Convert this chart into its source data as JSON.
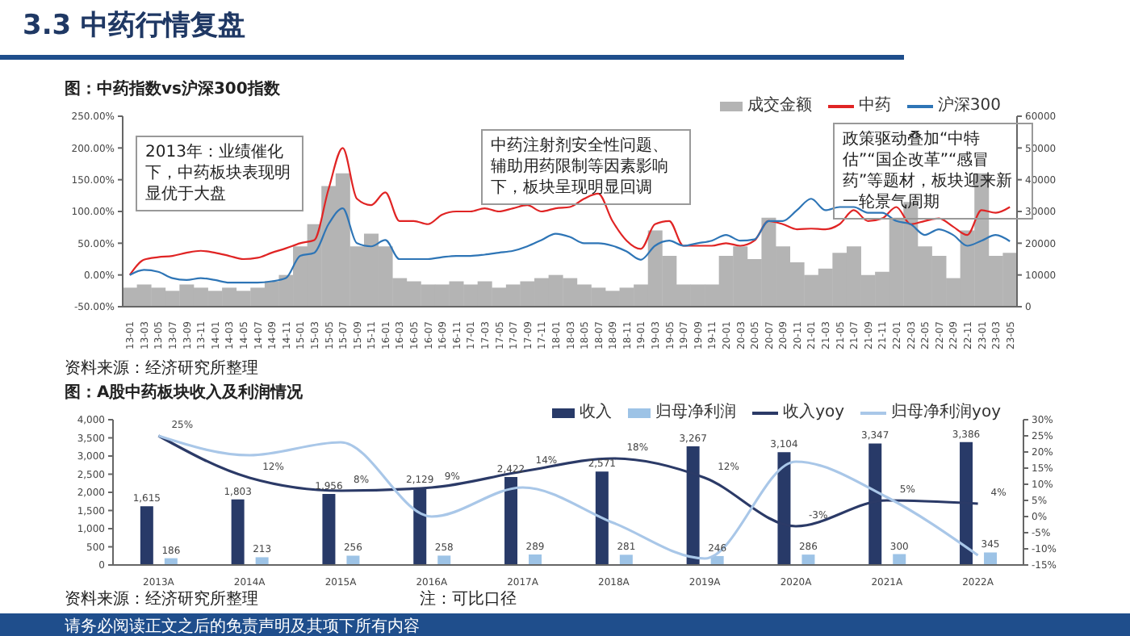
{
  "chart_data": [
    {
      "type": "line",
      "title": "图：中药指数vs沪深300指数",
      "categories": [
        "13-01",
        "13-03",
        "13-05",
        "13-07",
        "13-09",
        "13-11",
        "14-01",
        "14-03",
        "14-05",
        "14-07",
        "14-09",
        "14-11",
        "15-01",
        "15-03",
        "15-05",
        "15-07",
        "15-09",
        "15-11",
        "16-01",
        "16-03",
        "16-05",
        "16-07",
        "16-09",
        "16-11",
        "17-01",
        "17-03",
        "17-05",
        "17-07",
        "17-09",
        "17-11",
        "18-01",
        "18-03",
        "18-05",
        "18-07",
        "18-09",
        "18-11",
        "19-01",
        "19-03",
        "19-05",
        "19-07",
        "19-09",
        "19-11",
        "20-01",
        "20-03",
        "20-05",
        "20-07",
        "20-09",
        "20-11",
        "21-01",
        "21-03",
        "21-05",
        "21-07",
        "21-09",
        "21-11",
        "22-01",
        "22-03",
        "22-05",
        "22-07",
        "22-09",
        "22-11",
        "23-01",
        "23-03",
        "23-05"
      ],
      "series": [
        {
          "name": "成交金额",
          "type": "bar",
          "axis": "y2",
          "color": "#b4b4b4",
          "values": [
            6000,
            7000,
            6000,
            5000,
            7000,
            6000,
            5000,
            6000,
            5000,
            6000,
            8000,
            10000,
            19000,
            26000,
            38000,
            42000,
            19000,
            23000,
            19000,
            9000,
            8000,
            7000,
            7000,
            8000,
            7000,
            8000,
            6000,
            7000,
            8000,
            9000,
            10000,
            9000,
            7000,
            6000,
            5000,
            6000,
            7000,
            24000,
            16000,
            7000,
            7000,
            7000,
            16000,
            19000,
            15000,
            28000,
            19000,
            14000,
            10000,
            12000,
            17000,
            19000,
            10000,
            11000,
            28000,
            33000,
            19000,
            16000,
            9000,
            24000,
            42000,
            16000,
            17000
          ]
        },
        {
          "name": "中药",
          "color": "#e02424",
          "values": [
            0,
            24,
            28,
            30,
            35,
            38,
            35,
            30,
            25,
            27,
            35,
            42,
            50,
            55,
            135,
            200,
            120,
            110,
            130,
            85,
            85,
            80,
            95,
            100,
            100,
            105,
            100,
            105,
            110,
            100,
            105,
            107,
            120,
            128,
            85,
            54,
            41,
            80,
            85,
            46,
            46,
            46,
            50,
            46,
            54,
            85,
            80,
            72,
            73,
            72,
            80,
            102,
            85,
            89,
            107,
            80,
            85,
            89,
            76,
            63,
            102,
            98,
            107
          ]
        },
        {
          "name": "沪深300",
          "color": "#2e75b6",
          "values": [
            0,
            8,
            5,
            -5,
            -8,
            -5,
            -8,
            -12,
            -12,
            -12,
            -10,
            -5,
            30,
            35,
            80,
            105,
            50,
            45,
            55,
            25,
            25,
            25,
            28,
            30,
            30,
            32,
            35,
            38,
            45,
            55,
            65,
            60,
            50,
            50,
            46,
            37,
            24,
            46,
            54,
            46,
            50,
            54,
            63,
            54,
            56,
            85,
            85,
            102,
            120,
            102,
            107,
            107,
            98,
            98,
            85,
            80,
            63,
            72,
            63,
            46,
            54,
            63,
            53
          ]
        }
      ],
      "ylim": [
        -50,
        250
      ],
      "yticks": [
        {
          "value": -50,
          "label": "-50.00%"
        },
        {
          "value": 0,
          "label": "0.00%"
        },
        {
          "value": 50,
          "label": "50.00%"
        },
        {
          "value": 100,
          "label": "100.00%"
        },
        {
          "value": 150,
          "label": "150.00%"
        },
        {
          "value": 200,
          "label": "200.00%"
        },
        {
          "value": 250,
          "label": "250.00%"
        }
      ],
      "y2lim": [
        0,
        60000
      ],
      "y2ticks": [
        0,
        10000,
        20000,
        30000,
        40000,
        50000,
        60000
      ],
      "legend": "top right",
      "annotations": [
        "3.3 中药行情复盘",
        "2013年：业绩催化下，中药板块表现明显优于大盘",
        "中药注射剂安全性问题、辅助用药限制等因素影响下，板块呈现明显回调",
        "政策驱动叠加“中特估”“国企改革”“感冒药”等题材，板块迎来新一轮景气周期",
        "资料来源：经济研究所整理"
      ]
    },
    {
      "type": "bar",
      "title": "图：A股中药板块收入及利润情况",
      "categories": [
        "2013A",
        "2014A",
        "2015A",
        "2016A",
        "2017A",
        "2018A",
        "2019A",
        "2020A",
        "2021A",
        "2022A"
      ],
      "series": [
        {
          "name": "收入",
          "color": "#283a68",
          "values": [
            1615,
            1803,
            1956,
            2129,
            2422,
            2571,
            3267,
            3104,
            3347,
            3386
          ],
          "value_labels": [
            "1,615",
            "1,803",
            "1,956",
            "2,129",
            "2,422",
            "2,571",
            "3,267",
            "3,104",
            "3,347",
            "3,386"
          ]
        },
        {
          "name": "归母净利润",
          "color": "#9dc3e6",
          "values": [
            186,
            213,
            256,
            258,
            289,
            281,
            246,
            286,
            300,
            345
          ],
          "value_labels": [
            "186",
            "213",
            "256",
            "258",
            "289",
            "281",
            "246",
            "286",
            "300",
            "345"
          ]
        },
        {
          "name": "收入yoy",
          "type": "line",
          "axis": "y2",
          "color": "#2b3a67",
          "values": [
            25,
            12,
            8,
            9,
            14,
            18,
            12,
            -3,
            5,
            4
          ],
          "value_labels": [
            "25%",
            "12%",
            "8%",
            "9%",
            "14%",
            "18%",
            "12%",
            "-3%",
            "5%",
            "4%"
          ]
        },
        {
          "name": "归母净利润yoy",
          "type": "line",
          "axis": "y2",
          "color": "#a9c7e8",
          "values": [
            25,
            19,
            23,
            0,
            9,
            -2,
            -13,
            17,
            6,
            -12
          ]
        }
      ],
      "ylim": [
        0,
        4000
      ],
      "yticks": [
        0,
        500,
        {
          "value": 1000,
          "label": "1,000"
        },
        {
          "value": 1500,
          "label": "1,500"
        },
        {
          "value": 2000,
          "label": "2,000"
        },
        {
          "value": 2500,
          "label": "2,500"
        },
        {
          "value": 3000,
          "label": "3,000"
        },
        {
          "value": 3500,
          "label": "3,500"
        },
        {
          "value": 4000,
          "label": "4,000"
        }
      ],
      "y2lim": [
        -15,
        30
      ],
      "y2ticks": [
        {
          "value": -15,
          "label": "-15%"
        },
        {
          "value": -10,
          "label": "-10%"
        },
        {
          "value": -5,
          "label": "-5%"
        },
        {
          "value": 0,
          "label": "0%"
        },
        {
          "value": 5,
          "label": "5%"
        },
        {
          "value": 10,
          "label": "10%"
        },
        {
          "value": 15,
          "label": "15%"
        },
        {
          "value": 20,
          "label": "20%"
        },
        {
          "value": 25,
          "label": "25%"
        },
        {
          "value": 30,
          "label": "30%"
        }
      ],
      "legend": "top right",
      "annotations": [
        "资料来源：经济研究所整理",
        "注：可比口径",
        "请务必阅读正文之后的免责声明及其项下所有内容"
      ]
    }
  ]
}
